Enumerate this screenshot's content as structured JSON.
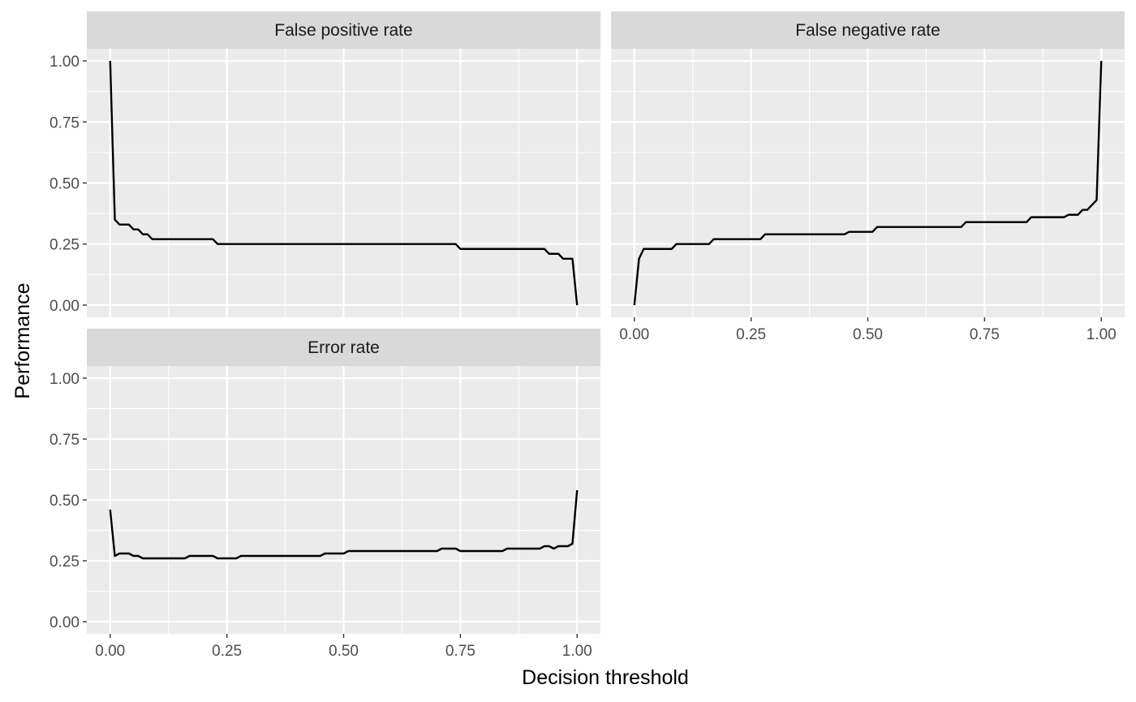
{
  "chart_data": {
    "type": "line",
    "layout": "facet_wrap",
    "xlabel": "Decision threshold",
    "ylabel": "Performance",
    "xlim": [
      0,
      1
    ],
    "ylim": [
      0,
      1
    ],
    "x_ticks": [
      0,
      0.25,
      0.5,
      0.75,
      1
    ],
    "x_tick_labels": [
      "0.00",
      "0.25",
      "0.50",
      "0.75",
      "1.00"
    ],
    "y_ticks": [
      0,
      0.25,
      0.5,
      0.75,
      1
    ],
    "y_tick_labels": [
      "0.00",
      "0.25",
      "0.50",
      "0.75",
      "1.00"
    ],
    "grid": true,
    "line_color": "#000000",
    "panel_background": "#ebebeb",
    "strip_background": "#d9d9d9",
    "panels": [
      {
        "title": "False positive rate",
        "x": [
          0,
          0.01,
          0.02,
          0.04,
          0.05,
          0.06,
          0.07,
          0.08,
          0.09,
          0.22,
          0.23,
          0.74,
          0.75,
          0.93,
          0.94,
          0.96,
          0.97,
          0.98,
          0.99,
          1.0
        ],
        "y": [
          1.0,
          0.35,
          0.33,
          0.33,
          0.31,
          0.31,
          0.29,
          0.29,
          0.27,
          0.27,
          0.25,
          0.25,
          0.23,
          0.23,
          0.21,
          0.21,
          0.19,
          0.19,
          0.19,
          0.0
        ]
      },
      {
        "title": "False negative rate",
        "x": [
          0,
          0.01,
          0.02,
          0.08,
          0.09,
          0.16,
          0.17,
          0.27,
          0.28,
          0.45,
          0.46,
          0.51,
          0.52,
          0.7,
          0.71,
          0.84,
          0.85,
          0.92,
          0.93,
          0.95,
          0.96,
          0.97,
          0.99,
          1.0
        ],
        "y": [
          0.0,
          0.19,
          0.23,
          0.23,
          0.25,
          0.25,
          0.27,
          0.27,
          0.29,
          0.29,
          0.3,
          0.3,
          0.32,
          0.32,
          0.34,
          0.34,
          0.36,
          0.36,
          0.37,
          0.37,
          0.39,
          0.39,
          0.43,
          1.0
        ]
      },
      {
        "title": "Error rate",
        "x": [
          0,
          0.01,
          0.02,
          0.04,
          0.05,
          0.06,
          0.07,
          0.16,
          0.17,
          0.22,
          0.23,
          0.27,
          0.28,
          0.45,
          0.46,
          0.5,
          0.51,
          0.7,
          0.71,
          0.74,
          0.75,
          0.76,
          0.84,
          0.85,
          0.92,
          0.93,
          0.94,
          0.95,
          0.96,
          0.98,
          0.99,
          1.0
        ],
        "y": [
          0.46,
          0.27,
          0.28,
          0.28,
          0.27,
          0.27,
          0.26,
          0.26,
          0.27,
          0.27,
          0.26,
          0.26,
          0.27,
          0.27,
          0.28,
          0.28,
          0.29,
          0.29,
          0.3,
          0.3,
          0.29,
          0.29,
          0.29,
          0.3,
          0.3,
          0.31,
          0.31,
          0.3,
          0.31,
          0.31,
          0.32,
          0.54
        ]
      }
    ]
  }
}
